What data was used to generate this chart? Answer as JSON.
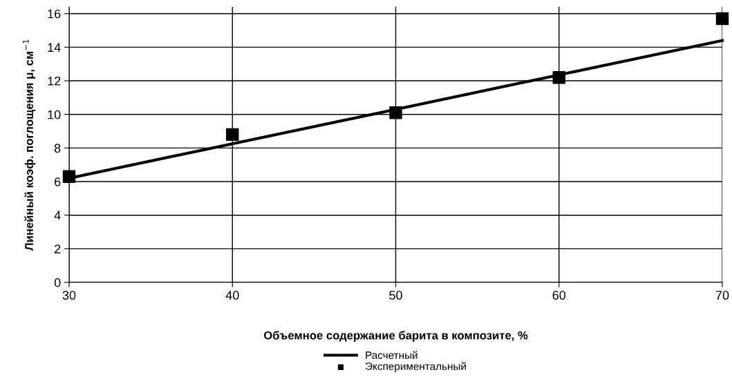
{
  "chart_data": {
    "type": "line",
    "xlabel": "Объемное содержание барита в композите, %",
    "ylabel": "Линейный коэф. поглощения μ, см$^{−1}$",
    "xlim": [
      30,
      70
    ],
    "xticks": [
      30,
      40,
      50,
      60,
      70
    ],
    "ylim": [
      0,
      16.4
    ],
    "yticks": [
      0,
      2,
      4,
      6,
      8,
      10,
      12,
      14,
      16
    ],
    "grid": true,
    "legend": "bottom",
    "series": [
      {
        "name": "Расчетный",
        "color": "#000000",
        "marker": "none",
        "line_style": "solid",
        "x": [
          30,
          70
        ],
        "values": [
          6.2,
          14.4
        ]
      },
      {
        "name": "Экспериментальный",
        "type": "scatter",
        "color": "#000000",
        "marker": "square",
        "x": [
          30,
          40,
          50,
          60,
          70
        ],
        "values": [
          6.3,
          8.8,
          10.1,
          12.2,
          15.7
        ]
      }
    ]
  }
}
